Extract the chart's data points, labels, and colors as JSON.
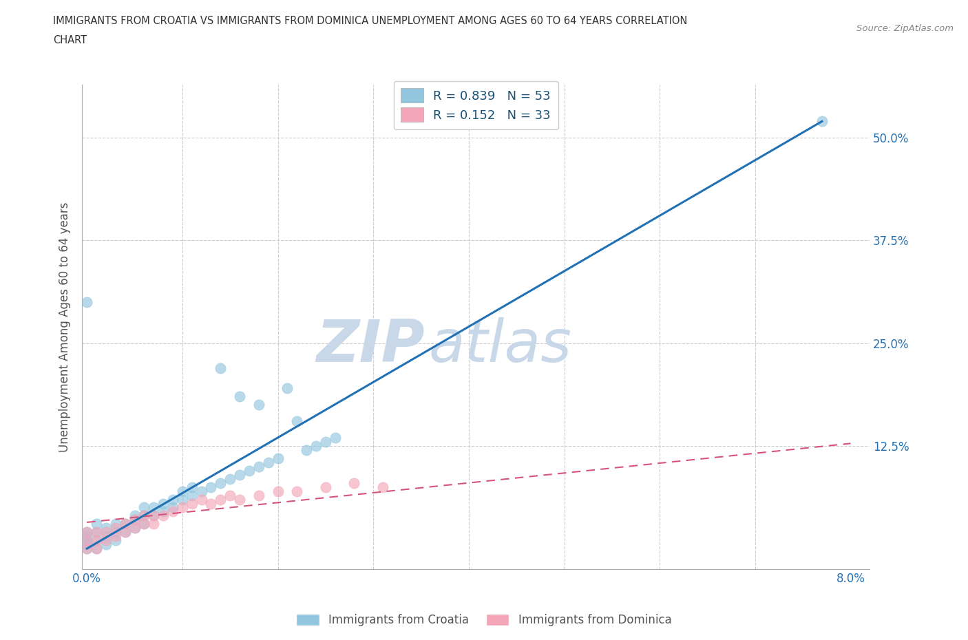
{
  "title_line1": "IMMIGRANTS FROM CROATIA VS IMMIGRANTS FROM DOMINICA UNEMPLOYMENT AMONG AGES 60 TO 64 YEARS CORRELATION",
  "title_line2": "CHART",
  "source": "Source: ZipAtlas.com",
  "ylabel": "Unemployment Among Ages 60 to 64 years",
  "xlim": [
    -0.0005,
    0.082
  ],
  "ylim": [
    -0.025,
    0.565
  ],
  "croatia_color": "#92c5de",
  "dominica_color": "#f4a6b8",
  "croatia_line_color": "#2171b5",
  "dominica_line_color": "#d4547a",
  "R_croatia": 0.839,
  "N_croatia": 53,
  "R_dominica": 0.152,
  "N_dominica": 33,
  "watermark_ZIP": "ZIP",
  "watermark_atlas": "atlas",
  "watermark_color_ZIP": "#c8d8e8",
  "watermark_color_atlas": "#c8d8e8",
  "croatia_line_x": [
    0.0,
    0.077
  ],
  "croatia_line_y": [
    0.0,
    0.52
  ],
  "dominica_line_x": [
    0.0,
    0.08
  ],
  "dominica_line_y": [
    0.032,
    0.128
  ],
  "croatia_scatter_x": [
    0.0,
    0.0,
    0.0,
    0.0,
    0.0,
    0.001,
    0.001,
    0.001,
    0.001,
    0.002,
    0.002,
    0.002,
    0.003,
    0.003,
    0.003,
    0.004,
    0.004,
    0.005,
    0.005,
    0.005,
    0.006,
    0.006,
    0.006,
    0.007,
    0.007,
    0.008,
    0.008,
    0.009,
    0.009,
    0.01,
    0.01,
    0.011,
    0.011,
    0.012,
    0.013,
    0.014,
    0.015,
    0.016,
    0.017,
    0.018,
    0.019,
    0.02,
    0.021,
    0.022,
    0.023,
    0.024,
    0.025,
    0.026,
    0.014,
    0.016,
    0.018,
    0.077,
    0.0
  ],
  "croatia_scatter_y": [
    0.0,
    0.01,
    0.02,
    0.005,
    0.015,
    0.0,
    0.01,
    0.02,
    0.03,
    0.005,
    0.015,
    0.025,
    0.01,
    0.02,
    0.03,
    0.02,
    0.03,
    0.025,
    0.035,
    0.04,
    0.03,
    0.04,
    0.05,
    0.04,
    0.05,
    0.045,
    0.055,
    0.05,
    0.06,
    0.06,
    0.07,
    0.065,
    0.075,
    0.07,
    0.075,
    0.08,
    0.085,
    0.09,
    0.095,
    0.1,
    0.105,
    0.11,
    0.195,
    0.155,
    0.12,
    0.125,
    0.13,
    0.135,
    0.22,
    0.185,
    0.175,
    0.52,
    0.3
  ],
  "dominica_scatter_x": [
    0.0,
    0.0,
    0.0,
    0.001,
    0.001,
    0.001,
    0.002,
    0.002,
    0.003,
    0.003,
    0.004,
    0.004,
    0.005,
    0.005,
    0.006,
    0.006,
    0.007,
    0.007,
    0.008,
    0.009,
    0.01,
    0.011,
    0.012,
    0.013,
    0.014,
    0.015,
    0.016,
    0.018,
    0.02,
    0.022,
    0.025,
    0.028,
    0.031
  ],
  "dominica_scatter_y": [
    0.0,
    0.01,
    0.02,
    0.0,
    0.01,
    0.02,
    0.01,
    0.02,
    0.015,
    0.025,
    0.02,
    0.03,
    0.025,
    0.035,
    0.03,
    0.04,
    0.03,
    0.04,
    0.04,
    0.045,
    0.05,
    0.055,
    0.06,
    0.055,
    0.06,
    0.065,
    0.06,
    0.065,
    0.07,
    0.07,
    0.075,
    0.08,
    0.075
  ]
}
